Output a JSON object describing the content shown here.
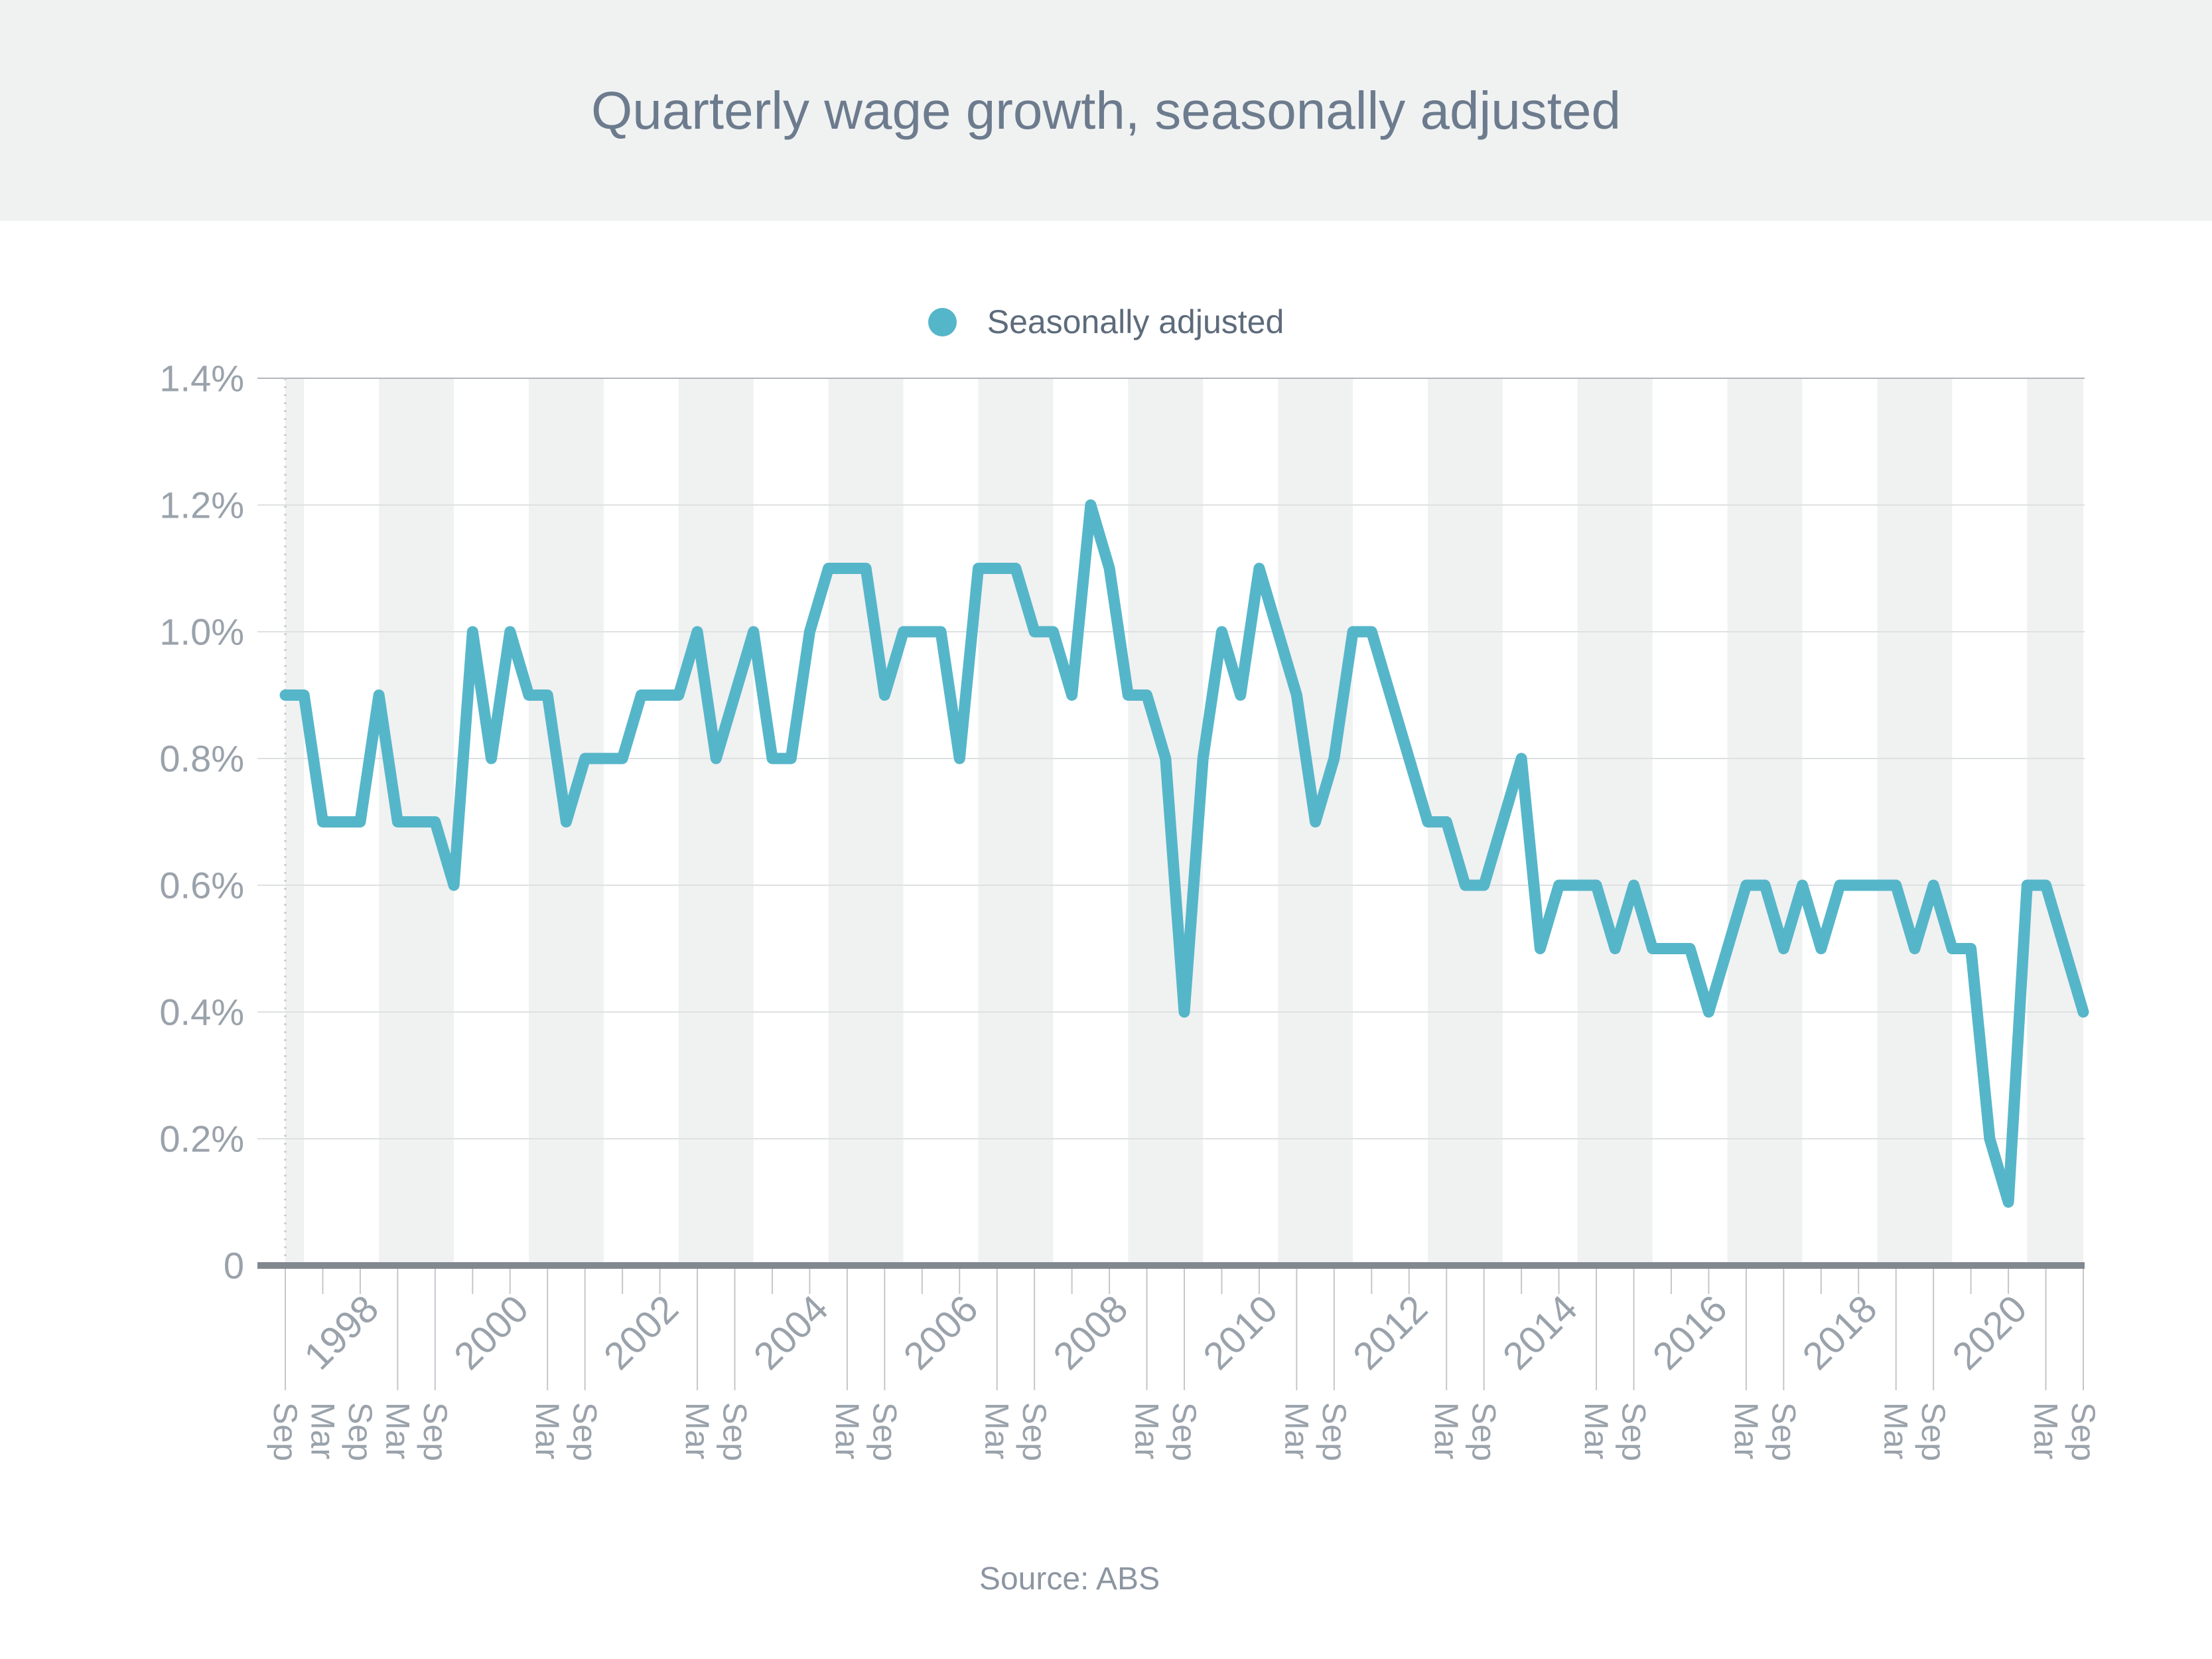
{
  "header": {
    "title": "Quarterly wage growth, seasonally adjusted"
  },
  "legend": {
    "label": "Seasonally adjusted"
  },
  "footer": {
    "source": "Source: ABS"
  },
  "colors": {
    "accent": "#56b6c9",
    "header_bg": "#f0f2f2",
    "band": "#f0f1f1",
    "grid": "#dee0e2",
    "grid_top": "#b2b5ba",
    "axis": "#82888f",
    "tick": "#c3c7cb",
    "axis_text": "#9aa2ab",
    "title_text": "#6c7b8d",
    "legend_text": "#5d6b7b",
    "source_text": "#8c96a2",
    "dotted": "#c7cacd"
  },
  "chart_data": {
    "type": "line",
    "title": "Quarterly wage growth, seasonally adjusted",
    "series_name": "Seasonally adjusted",
    "unit": "%",
    "grid": true,
    "legend_position": "top-center",
    "ylim": [
      0,
      1.4
    ],
    "categories": [
      "Sep 1997",
      "Dec 1997",
      "Mar 1998",
      "Jun 1998",
      "Sep 1998",
      "Dec 1998",
      "Mar 1999",
      "Jun 1999",
      "Sep 1999",
      "Dec 1999",
      "Mar 2000",
      "Jun 2000",
      "Sep 2000",
      "Dec 2000",
      "Mar 2001",
      "Jun 2001",
      "Sep 2001",
      "Dec 2001",
      "Mar 2002",
      "Jun 2002",
      "Sep 2002",
      "Dec 2002",
      "Mar 2003",
      "Jun 2003",
      "Sep 2003",
      "Dec 2003",
      "Mar 2004",
      "Jun 2004",
      "Sep 2004",
      "Dec 2004",
      "Mar 2005",
      "Jun 2005",
      "Sep 2005",
      "Dec 2005",
      "Mar 2006",
      "Jun 2006",
      "Sep 2006",
      "Dec 2006",
      "Mar 2007",
      "Jun 2007",
      "Sep 2007",
      "Dec 2007",
      "Mar 2008",
      "Jun 2008",
      "Sep 2008",
      "Dec 2008",
      "Mar 2009",
      "Jun 2009",
      "Sep 2009",
      "Dec 2009",
      "Mar 2010",
      "Jun 2010",
      "Sep 2010",
      "Dec 2010",
      "Mar 2011",
      "Jun 2011",
      "Sep 2011",
      "Dec 2011",
      "Mar 2012",
      "Jun 2012",
      "Sep 2012",
      "Dec 2012",
      "Mar 2013",
      "Jun 2013",
      "Sep 2013",
      "Dec 2013",
      "Mar 2014",
      "Jun 2014",
      "Sep 2014",
      "Dec 2014",
      "Mar 2015",
      "Jun 2015",
      "Sep 2015",
      "Dec 2015",
      "Mar 2016",
      "Jun 2016",
      "Sep 2016",
      "Dec 2016",
      "Mar 2017",
      "Jun 2017",
      "Sep 2017",
      "Dec 2017",
      "Mar 2018",
      "Jun 2018",
      "Sep 2018",
      "Dec 2018",
      "Mar 2019",
      "Jun 2019",
      "Sep 2019",
      "Dec 2019",
      "Mar 2020",
      "Jun 2020",
      "Sep 2020",
      "Dec 2020",
      "Mar 2021",
      "Jun 2021",
      "Sep 2021"
    ],
    "values": [
      0.9,
      0.9,
      0.7,
      0.7,
      0.7,
      0.9,
      0.7,
      0.7,
      0.7,
      0.6,
      1.0,
      0.8,
      1.0,
      0.9,
      0.9,
      0.7,
      0.8,
      0.8,
      0.8,
      0.9,
      0.9,
      0.9,
      1.0,
      0.8,
      0.9,
      1.0,
      0.8,
      0.8,
      1.0,
      1.1,
      1.1,
      1.1,
      0.9,
      1.0,
      1.0,
      1.0,
      0.8,
      1.1,
      1.1,
      1.1,
      1.0,
      1.0,
      0.9,
      1.2,
      1.1,
      0.9,
      0.9,
      0.8,
      0.4,
      0.8,
      1.0,
      0.9,
      1.1,
      1.0,
      0.9,
      0.7,
      0.8,
      1.0,
      1.0,
      0.9,
      0.8,
      0.7,
      0.7,
      0.6,
      0.6,
      0.7,
      0.8,
      0.5,
      0.6,
      0.6,
      0.6,
      0.5,
      0.6,
      0.5,
      0.5,
      0.5,
      0.4,
      0.5,
      0.6,
      0.6,
      0.5,
      0.6,
      0.5,
      0.6,
      0.6,
      0.6,
      0.6,
      0.5,
      0.6,
      0.5,
      0.5,
      0.2,
      0.1,
      0.6,
      0.6,
      0.5,
      0.4
    ],
    "y_axis": {
      "ticks": [
        {
          "v": 1.4,
          "label": "1.4%"
        },
        {
          "v": 1.2,
          "label": "1.2%"
        },
        {
          "v": 1.0,
          "label": "1.0%"
        },
        {
          "v": 0.8,
          "label": "0.8%"
        },
        {
          "v": 0.6,
          "label": "0.6%"
        },
        {
          "v": 0.4,
          "label": "0.4%"
        },
        {
          "v": 0.2,
          "label": "0.2%"
        },
        {
          "v": 0,
          "label": "0"
        }
      ]
    },
    "x_axis": {
      "labeled_ticks": [
        {
          "i": 0,
          "label": "Sep"
        },
        {
          "i": 2,
          "label": "Mar"
        },
        {
          "i": 4,
          "label": "Sep"
        },
        {
          "i": 6,
          "label": "Mar"
        },
        {
          "i": 8,
          "label": "Sep"
        },
        {
          "i": 14,
          "label": "Mar"
        },
        {
          "i": 16,
          "label": "Sep"
        },
        {
          "i": 22,
          "label": "Mar"
        },
        {
          "i": 24,
          "label": "Sep"
        },
        {
          "i": 30,
          "label": "Mar"
        },
        {
          "i": 32,
          "label": "Sep"
        },
        {
          "i": 38,
          "label": "Mar"
        },
        {
          "i": 40,
          "label": "Sep"
        },
        {
          "i": 46,
          "label": "Mar"
        },
        {
          "i": 48,
          "label": "Sep"
        },
        {
          "i": 54,
          "label": "Mar"
        },
        {
          "i": 56,
          "label": "Sep"
        },
        {
          "i": 62,
          "label": "Mar"
        },
        {
          "i": 64,
          "label": "Sep"
        },
        {
          "i": 70,
          "label": "Mar"
        },
        {
          "i": 72,
          "label": "Sep"
        },
        {
          "i": 78,
          "label": "Mar"
        },
        {
          "i": 80,
          "label": "Sep"
        },
        {
          "i": 86,
          "label": "Mar"
        },
        {
          "i": 88,
          "label": "Sep"
        },
        {
          "i": 94,
          "label": "Mar"
        },
        {
          "i": 96,
          "label": "Sep"
        }
      ],
      "short_tick_labeled": [
        2,
        4
      ],
      "year_labels": [
        "1998",
        "2000",
        "2002",
        "2004",
        "2006",
        "2008",
        "2010",
        "2012",
        "2014",
        "2016",
        "2018",
        "2020"
      ]
    }
  }
}
